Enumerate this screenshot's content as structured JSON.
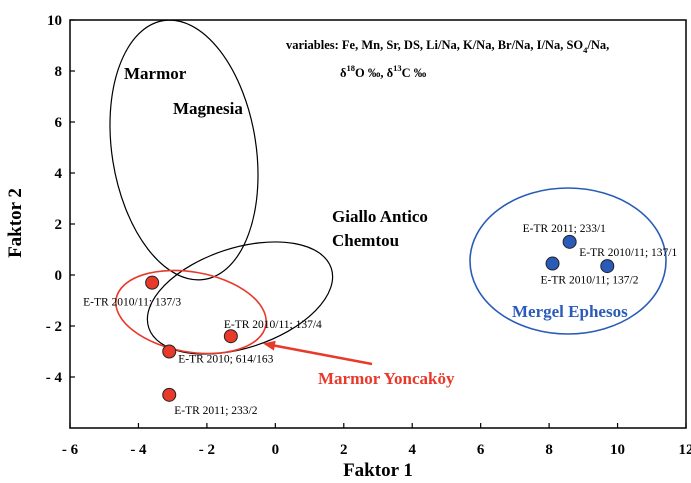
{
  "chart_data": {
    "type": "scatter",
    "xlabel": "Faktor 1",
    "ylabel": "Faktor 2",
    "xlim": [
      -6,
      12
    ],
    "ylim": [
      -6,
      10
    ],
    "x_ticks": [
      -6,
      -4,
      -2,
      0,
      2,
      4,
      6,
      8,
      10,
      12
    ],
    "y_ticks": [
      -4,
      -2,
      0,
      2,
      4,
      6,
      8,
      10
    ],
    "x_tick_labels": [
      "- 6",
      "- 4",
      "- 2",
      "0",
      "2",
      "4",
      "6",
      "8",
      "10",
      "12"
    ],
    "y_tick_labels": [
      "- 4",
      "- 2",
      "0",
      "2",
      "4",
      "6",
      "8",
      "10"
    ],
    "grid": false,
    "variables_note": {
      "line1": "variables: Fe, Mn, Sr, DS, Li/Na, K/Na, Br/Na, I/Na, SO",
      "line1_sub": "4",
      "line1_end": "/Na,",
      "line2_delta1": "δ",
      "line2_sup1": "18",
      "line2_mid": "O ‰, δ",
      "line2_sup2": "13",
      "line2_end": "C ‰"
    },
    "series": [
      {
        "name": "Marmor Yoncaköy",
        "color": "#e8392a",
        "points": [
          {
            "x": -3.6,
            "y": -0.3,
            "label": "E-TR 2010/11; 137/3"
          },
          {
            "x": -1.3,
            "y": -2.4,
            "label": "E-TR 2010/11; 137/4"
          },
          {
            "x": -3.1,
            "y": -3.0,
            "label": "E-TR 2010; 614/163"
          },
          {
            "x": -3.1,
            "y": -4.7,
            "label": "E-TR 2011; 233/2"
          }
        ]
      },
      {
        "name": "Mergel Ephesos",
        "color": "#2b5bb8",
        "points": [
          {
            "x": 8.6,
            "y": 1.3,
            "label": "E-TR 2011; 233/1"
          },
          {
            "x": 9.7,
            "y": 0.35,
            "label": "E-TR 2010/11; 137/1"
          },
          {
            "x": 8.1,
            "y": 0.45,
            "label": "E-TR 2010/11; 137/2"
          }
        ]
      }
    ],
    "group_labels": {
      "marmor_magnesia_1": "Marmor",
      "marmor_magnesia_2": "Magnesia",
      "giallo_1": "Giallo Antico",
      "giallo_2": "Chemtou",
      "yoncakoy": "Marmor Yoncaköy",
      "ephesos": "Mergel Ephesos"
    },
    "colors": {
      "red": "#e8392a",
      "blue": "#2b5bb8",
      "black": "#000000"
    }
  }
}
